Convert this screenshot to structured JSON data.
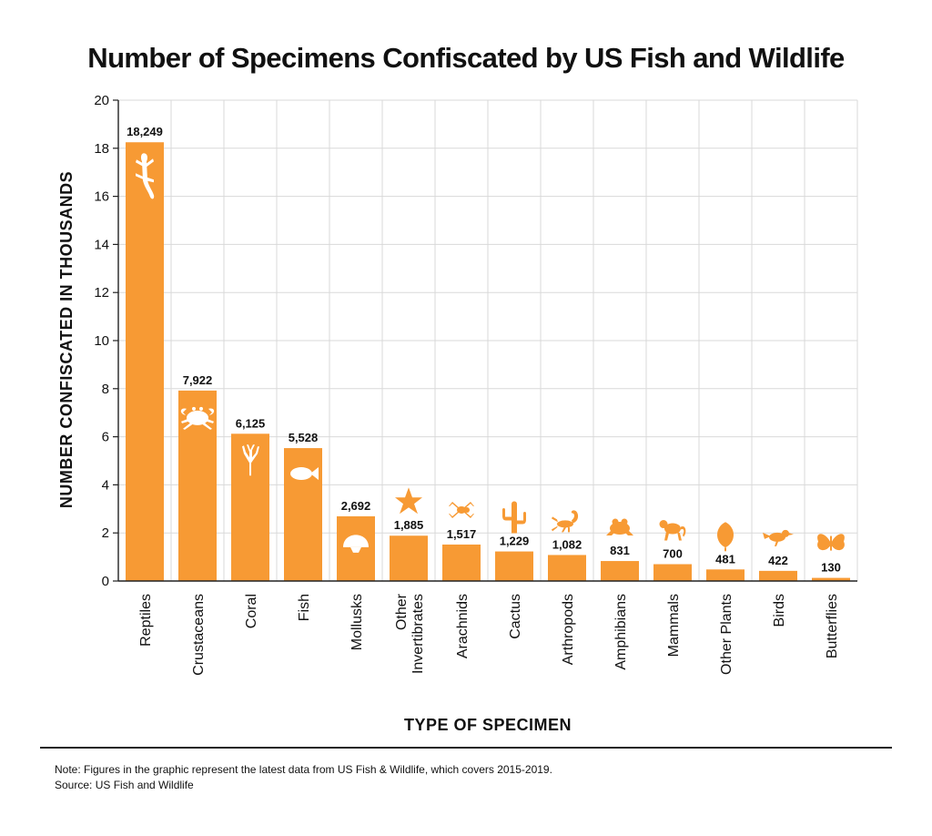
{
  "chart_data": {
    "type": "bar",
    "title": "Number of Specimens Confiscated by US Fish and Wildlife",
    "xlabel": "TYPE OF SPECIMEN",
    "ylabel": "NUMBER CONFISCATED IN THOUSANDS",
    "ylim": [
      0,
      20
    ],
    "yticks": [
      "0",
      "2",
      "4",
      "6",
      "8",
      "10",
      "12",
      "14",
      "16",
      "18",
      "20"
    ],
    "grid": true,
    "categories": [
      [
        "Reptiles"
      ],
      [
        "Crustaceans"
      ],
      [
        "Coral"
      ],
      [
        "Fish"
      ],
      [
        "Mollusks"
      ],
      [
        "Other",
        "Invertibrates"
      ],
      [
        "Arachnids"
      ],
      [
        "Cactus"
      ],
      [
        "Arthropods"
      ],
      [
        "Amphibians"
      ],
      [
        "Mammals"
      ],
      [
        "Other Plants"
      ],
      [
        "Birds"
      ],
      [
        "Butterflies"
      ]
    ],
    "values": [
      18.249,
      7.922,
      6.125,
      5.528,
      2.692,
      1.885,
      1.517,
      1.229,
      1.082,
      0.831,
      0.7,
      0.481,
      0.422,
      0.13
    ],
    "value_labels": [
      "18,249",
      "7,922",
      "6,125",
      "5,528",
      "2,692",
      "1,885",
      "1,517",
      "1,229",
      "1,082",
      "831",
      "700",
      "481",
      "422",
      "130"
    ],
    "icons": [
      "lizard-icon",
      "crab-icon",
      "coral-icon",
      "fish-icon",
      "shell-icon",
      "starfish-icon",
      "spider-icon",
      "cactus-icon",
      "scorpion-icon",
      "frog-icon",
      "monkey-icon",
      "leaf-icon",
      "bird-icon",
      "butterfly-icon"
    ],
    "bar_color": "#f79a34",
    "grid_color": "#d9d9d9"
  },
  "footer": {
    "note": "Note: Figures in the graphic represent the latest data from US Fish & Wildlife, which covers 2015-2019.",
    "source": "Source: US Fish and Wildlife"
  }
}
